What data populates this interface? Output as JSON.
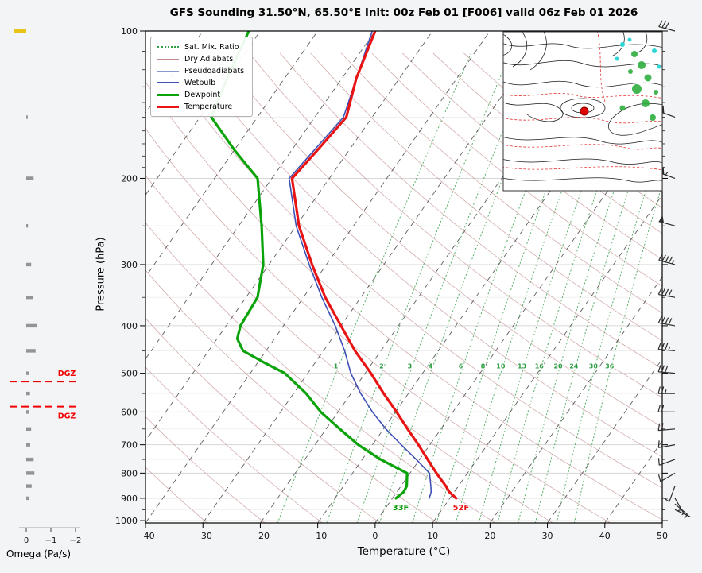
{
  "title": "GFS Sounding 31.50°N, 65.50°E Init: 00z Feb 01 [F006] valid 06z Feb 01 2026",
  "axes": {
    "x_label": "Temperature (°C)",
    "y_label": "Pressure (hPa)",
    "omega_label": "Omega (Pa/s)",
    "x_ticks": [
      -40,
      -30,
      -20,
      -10,
      0,
      10,
      20,
      30,
      40,
      50
    ],
    "x_tick_labels": [
      "−40",
      "−30",
      "−20",
      "−10",
      "0",
      "10",
      "20",
      "30",
      "40",
      "50"
    ],
    "pressure_ticks": [
      100,
      200,
      300,
      400,
      500,
      600,
      700,
      800,
      900,
      1000
    ],
    "omega_ticks": [
      0,
      -1,
      -2
    ],
    "omega_tick_labels": [
      "0",
      "−1",
      "−2"
    ]
  },
  "legend": {
    "items": [
      {
        "key": "mixratio",
        "label": "Sat. Mix. Ratio"
      },
      {
        "key": "dryadiabat",
        "label": "Dry Adiabats"
      },
      {
        "key": "pseudoadiabat",
        "label": "Pseudoadiabats"
      },
      {
        "key": "wetbulb",
        "label": "Wetbulb"
      },
      {
        "key": "dewpoint",
        "label": "Dewpoint"
      },
      {
        "key": "temperature",
        "label": "Temperature"
      }
    ]
  },
  "colors": {
    "temperature": "#e81414",
    "dewpoint": "#0aa30a",
    "wetbulb": "#3f51b5",
    "dryadiabat": "#c08a8a",
    "pseudoadiabat": "#8a96cf",
    "mixratio": "#2f9e44",
    "isotherm": "#4d4d4d",
    "dgz": "#f00000",
    "omega_neg": "#949494",
    "omega_pos": "#e8c419",
    "station_marker": "#e00000"
  },
  "chart_data": {
    "type": "line",
    "variant": "skew-T log-p sounding",
    "title": "GFS Sounding 31.50°N, 65.50°E Init: 00z Feb 01 [F006] valid 06z Feb 01 2026",
    "xlabel": "Temperature (°C)",
    "ylabel": "Pressure (hPa)",
    "xlim": [
      -40,
      50
    ],
    "pressure_range_hpa": [
      100,
      1011
    ],
    "skew_c_per_decade": 60,
    "grid": true,
    "legend_position": "upper left",
    "series": [
      {
        "name": "Temperature",
        "color": "#e81414",
        "width": 3.2,
        "points_p_t": [
          [
            100,
            -60
          ],
          [
            125,
            -57.5
          ],
          [
            150,
            -54.5
          ],
          [
            175,
            -55.5
          ],
          [
            200,
            -56.5
          ],
          [
            250,
            -49.5
          ],
          [
            300,
            -42.5
          ],
          [
            350,
            -36.2
          ],
          [
            400,
            -30
          ],
          [
            450,
            -24.5
          ],
          [
            500,
            -19
          ],
          [
            550,
            -14.3
          ],
          [
            600,
            -9.8
          ],
          [
            650,
            -5.8
          ],
          [
            700,
            -2
          ],
          [
            750,
            1.4
          ],
          [
            800,
            4.6
          ],
          [
            850,
            7.8
          ],
          [
            875,
            9.2
          ],
          [
            900,
            11.1
          ]
        ]
      },
      {
        "name": "Dewpoint",
        "color": "#0aa30a",
        "width": 3.2,
        "points_p_t": [
          [
            100,
            -82
          ],
          [
            125,
            -80
          ],
          [
            150,
            -78
          ],
          [
            175,
            -70
          ],
          [
            200,
            -62.5
          ],
          [
            250,
            -56
          ],
          [
            300,
            -51
          ],
          [
            350,
            -48
          ],
          [
            400,
            -47.5
          ],
          [
            425,
            -46.5
          ],
          [
            450,
            -44
          ],
          [
            475,
            -39
          ],
          [
            500,
            -34
          ],
          [
            550,
            -27.8
          ],
          [
            600,
            -23
          ],
          [
            650,
            -17.6
          ],
          [
            700,
            -12.5
          ],
          [
            750,
            -6.8
          ],
          [
            800,
            -0.5
          ],
          [
            850,
            1.0
          ],
          [
            875,
            1.2
          ],
          [
            900,
            0.6
          ]
        ]
      },
      {
        "name": "Wetbulb",
        "color": "#3f51b5",
        "width": 1.6,
        "points_p_t": [
          [
            100,
            -60.5
          ],
          [
            150,
            -55
          ],
          [
            200,
            -57
          ],
          [
            250,
            -50
          ],
          [
            300,
            -43
          ],
          [
            350,
            -36.8
          ],
          [
            400,
            -31
          ],
          [
            450,
            -26.3
          ],
          [
            500,
            -22.5
          ],
          [
            550,
            -18.3
          ],
          [
            600,
            -14
          ],
          [
            650,
            -9.6
          ],
          [
            700,
            -5
          ],
          [
            750,
            -0.6
          ],
          [
            800,
            3.4
          ],
          [
            850,
            5.2
          ],
          [
            875,
            6.0
          ],
          [
            900,
            6.4
          ]
        ]
      }
    ],
    "surface_labels": [
      {
        "text": "33F",
        "color": "#0a9a0a",
        "temp_c": 0.6,
        "pressure": 900
      },
      {
        "text": "52F",
        "color": "#e81414",
        "temp_c": 11.1,
        "pressure": 900
      }
    ],
    "mixing_ratio": {
      "label_pressure": 500,
      "values_g_kg": [
        1,
        2,
        3,
        4,
        6,
        8,
        10,
        13,
        16,
        20,
        24,
        30,
        36
      ]
    },
    "dgz": {
      "label": "DGZ",
      "top_pressure": 520,
      "bottom_pressure": 585
    },
    "omega_bars_p_paps": [
      [
        100,
        0.5
      ],
      [
        150,
        -0.06
      ],
      [
        200,
        -0.3
      ],
      [
        250,
        -0.07
      ],
      [
        300,
        -0.2
      ],
      [
        350,
        -0.28
      ],
      [
        400,
        -0.45
      ],
      [
        450,
        -0.38
      ],
      [
        500,
        -0.12
      ],
      [
        550,
        -0.15
      ],
      [
        600,
        -0.1
      ],
      [
        650,
        -0.2
      ],
      [
        700,
        -0.16
      ],
      [
        750,
        -0.3
      ],
      [
        800,
        -0.33
      ],
      [
        850,
        -0.22
      ],
      [
        900,
        -0.1
      ]
    ],
    "winds_p_dir_kt": [
      [
        100,
        285,
        30
      ],
      [
        150,
        290,
        50
      ],
      [
        200,
        290,
        55
      ],
      [
        250,
        285,
        50
      ],
      [
        300,
        285,
        45
      ],
      [
        350,
        280,
        40
      ],
      [
        400,
        280,
        40
      ],
      [
        450,
        275,
        35
      ],
      [
        500,
        275,
        30
      ],
      [
        550,
        270,
        25
      ],
      [
        600,
        270,
        20
      ],
      [
        650,
        265,
        20
      ],
      [
        700,
        260,
        15
      ],
      [
        750,
        250,
        10
      ],
      [
        800,
        240,
        10
      ],
      [
        850,
        200,
        10
      ],
      [
        900,
        150,
        5
      ],
      [
        925,
        130,
        5
      ],
      [
        950,
        115,
        5
      ]
    ]
  },
  "inset_map": {
    "name": "synoptic-overview-map",
    "station_marker": "red-dot"
  }
}
